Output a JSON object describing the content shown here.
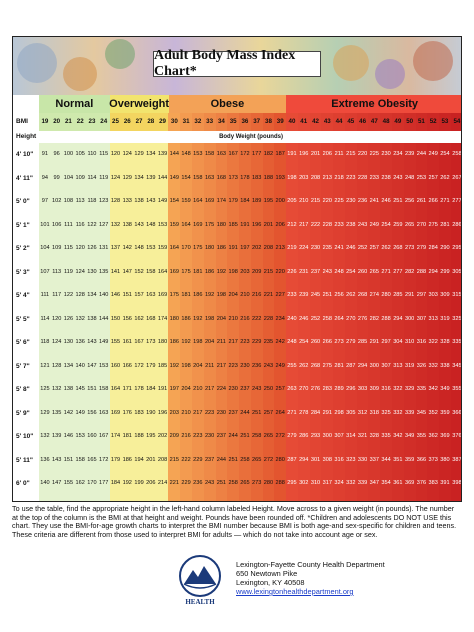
{
  "title": "Adult Body Mass Index Chart*",
  "categories": [
    {
      "label": "Normal",
      "start": 19,
      "end": 24,
      "color": "#c8e6a8"
    },
    {
      "label": "Overweight",
      "start": 25,
      "end": 29,
      "color": "#f2e46e"
    },
    {
      "label": "Obese",
      "start": 30,
      "end": 39,
      "color": "#f3a257"
    },
    {
      "label": "Extreme Obesity",
      "start": 40,
      "end": 54,
      "color": "#ef4a3b"
    }
  ],
  "bmi_label": "BMI",
  "height_label": "Height",
  "weight_label": "Body Weight (pounds)",
  "bmi_values": [
    19,
    20,
    21,
    22,
    23,
    24,
    25,
    26,
    27,
    28,
    29,
    30,
    31,
    32,
    33,
    34,
    35,
    36,
    37,
    38,
    39,
    40,
    41,
    42,
    43,
    44,
    45,
    46,
    47,
    48,
    49,
    50,
    51,
    52,
    53,
    54
  ],
  "heights": [
    {
      "label": "4' 10\"",
      "inches": 58
    },
    {
      "label": "4' 11\"",
      "inches": 59
    },
    {
      "label": "5' 0\"",
      "inches": 60
    },
    {
      "label": "5' 1\"",
      "inches": 61
    },
    {
      "label": "5' 2\"",
      "inches": 62
    },
    {
      "label": "5' 3\"",
      "inches": 63
    },
    {
      "label": "5' 4\"",
      "inches": 64
    },
    {
      "label": "5' 5\"",
      "inches": 65
    },
    {
      "label": "5' 6\"",
      "inches": 66
    },
    {
      "label": "5' 7\"",
      "inches": 67
    },
    {
      "label": "5' 8\"",
      "inches": 68
    },
    {
      "label": "5' 9\"",
      "inches": 69
    },
    {
      "label": "5' 10\"",
      "inches": 70
    },
    {
      "label": "5' 11\"",
      "inches": 71
    },
    {
      "label": "6' 0\"",
      "inches": 72
    },
    {
      "label": "6' 1\"",
      "inches": 73
    },
    {
      "label": "6' 2\"",
      "inches": 74
    },
    {
      "label": "6' 3\"",
      "inches": 75
    },
    {
      "label": "6' 4\"",
      "inches": 76
    }
  ],
  "note": "To use the table, find the appropriate height in the left-hand column labeled Height. Move across to a given weight (in pounds). The number at the top of the column is the BMI at that height and weight. Pounds have been rounded off. *Children and adolescents DO NOT USE this chart. They use the BMI-for-age growth charts to interpret the BMI number because BMI is both age-and sex-specific for children and teens. These criteria are different from those used to interpret BMI for adults — which do not take into account age or sex.",
  "contact": {
    "org": "Lexington-Fayette County Health Department",
    "street": "650 Newtown Pike",
    "city": "Lexington, KY 40508",
    "url": "www.lexingtonhealthdepartment.org"
  },
  "logo_text": "HEALTH",
  "colors": {
    "normal_light": "#e4f2cf",
    "normal": "#cfe9ad",
    "overweight_light": "#f7ef9a",
    "overweight": "#f3d560",
    "obese_start": "#f5a454",
    "obese_end": "#e3552f",
    "extreme_start": "#e64b36",
    "extreme_end": "#c92222"
  }
}
